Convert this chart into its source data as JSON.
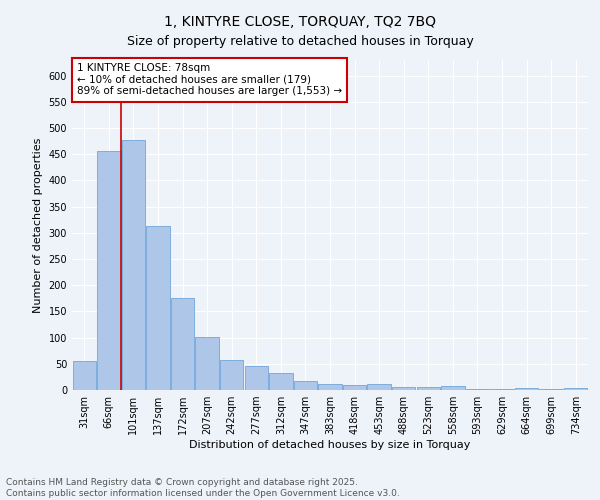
{
  "title": "1, KINTYRE CLOSE, TORQUAY, TQ2 7BQ",
  "subtitle": "Size of property relative to detached houses in Torquay",
  "xlabel": "Distribution of detached houses by size in Torquay",
  "ylabel": "Number of detached properties",
  "bar_values": [
    55,
    457,
    478,
    313,
    175,
    101,
    57,
    45,
    32,
    17,
    12,
    10,
    11,
    6,
    5,
    8,
    2,
    1,
    3,
    1,
    3
  ],
  "bar_labels": [
    "31sqm",
    "66sqm",
    "101sqm",
    "137sqm",
    "172sqm",
    "207sqm",
    "242sqm",
    "277sqm",
    "312sqm",
    "347sqm",
    "383sqm",
    "418sqm",
    "453sqm",
    "488sqm",
    "523sqm",
    "558sqm",
    "593sqm",
    "629sqm",
    "664sqm",
    "699sqm",
    "734sqm"
  ],
  "bar_color": "#aec6e8",
  "bar_edge_color": "#5b9bd5",
  "vline_x": 1.5,
  "vline_color": "#cc0000",
  "annotation_text": "1 KINTYRE CLOSE: 78sqm\n← 10% of detached houses are smaller (179)\n89% of semi-detached houses are larger (1,553) →",
  "annotation_box_color": "#cc0000",
  "ylim": [
    0,
    630
  ],
  "yticks": [
    0,
    50,
    100,
    150,
    200,
    250,
    300,
    350,
    400,
    450,
    500,
    550,
    600
  ],
  "background_color": "#eef2f9",
  "footer_text": "Contains HM Land Registry data © Crown copyright and database right 2025.\nContains public sector information licensed under the Open Government Licence v3.0.",
  "title_fontsize": 10,
  "subtitle_fontsize": 9,
  "axis_label_fontsize": 8,
  "tick_fontsize": 7,
  "annotation_fontsize": 7.5,
  "footer_fontsize": 6.5
}
